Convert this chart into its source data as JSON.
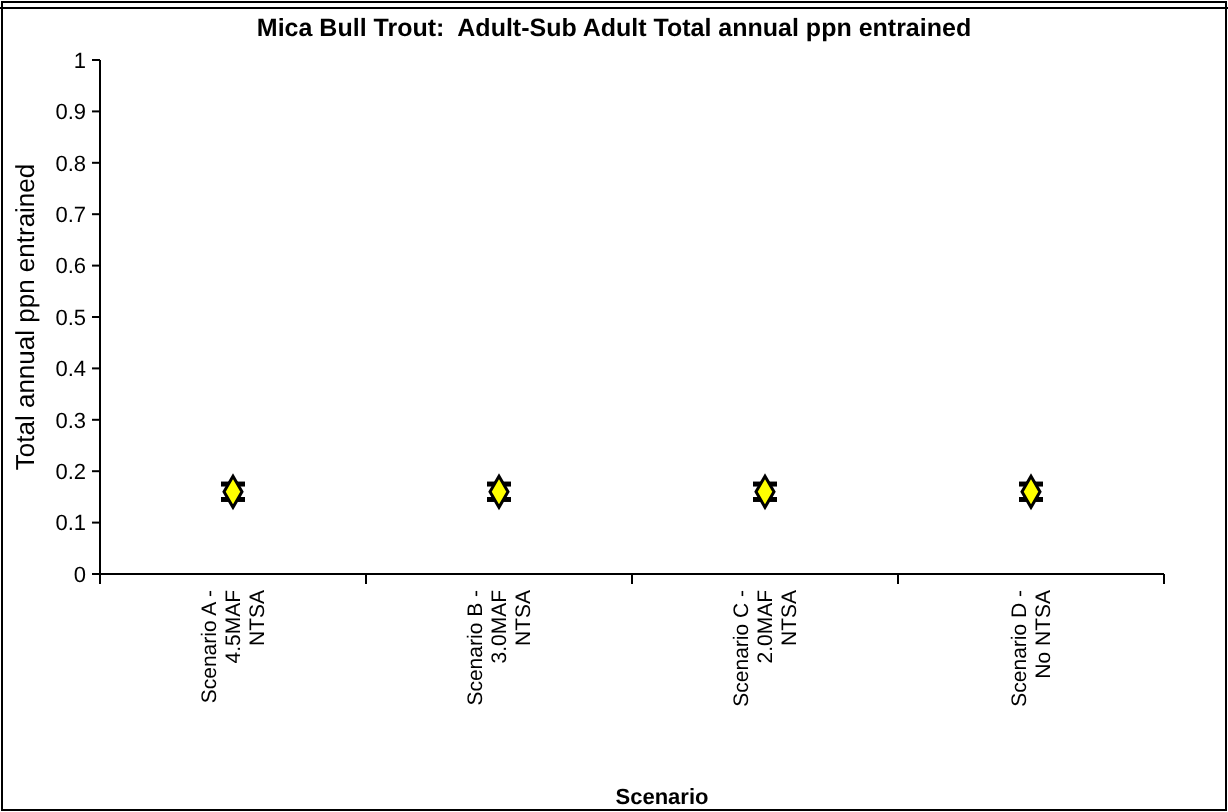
{
  "chart_data": {
    "type": "scatter",
    "title": "Mica Bull Trout:  Adult-Sub Adult Total annual ppn entrained",
    "xlabel": "Scenario",
    "ylabel": "Total annual ppn entrained",
    "categories": [
      "Scenario A - 4.5MAF NTSA",
      "Scenario B - 3.0MAF NTSA",
      "Scenario C - 2.0MAF NTSA",
      "Scenario D - No NTSA"
    ],
    "series": [
      {
        "color": "#ffff00",
        "values": [
          0.16,
          0.16,
          0.16,
          0.16
        ],
        "errors": [
          0.015,
          0.015,
          0.015,
          0.015
        ]
      }
    ],
    "marker": "diamond",
    "ylim": [
      0,
      1
    ],
    "yticks": [
      0,
      0.1,
      0.2,
      0.3,
      0.4,
      0.5,
      0.6,
      0.7,
      0.8,
      0.9,
      1
    ],
    "grid": false
  }
}
